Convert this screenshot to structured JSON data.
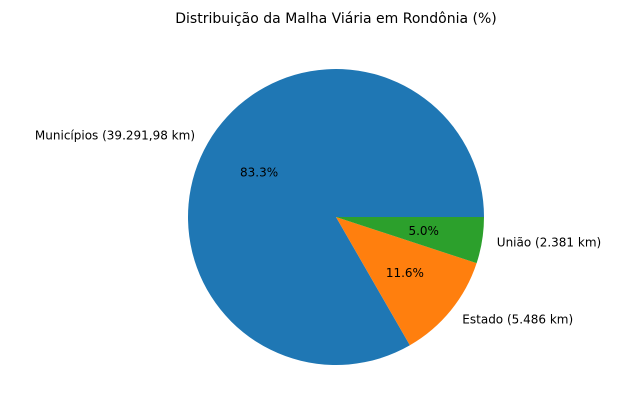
{
  "chart_data": {
    "type": "pie",
    "title": "Distribuição da Malha Viária em Rondônia (%)",
    "start_angle_deg": 0,
    "direction": "counterclockwise",
    "slices": [
      {
        "label": "Municípios (39.291,98 km)",
        "value": 39291.98,
        "percent_label": "83.3%",
        "color": "#1f77b4"
      },
      {
        "label": "Estado (5.486 km)",
        "value": 5486,
        "percent_label": "11.6%",
        "color": "#ff7f0e"
      },
      {
        "label": "União (2.381 km)",
        "value": 2381,
        "percent_label": "5.0%",
        "color": "#2ca02c"
      }
    ]
  }
}
